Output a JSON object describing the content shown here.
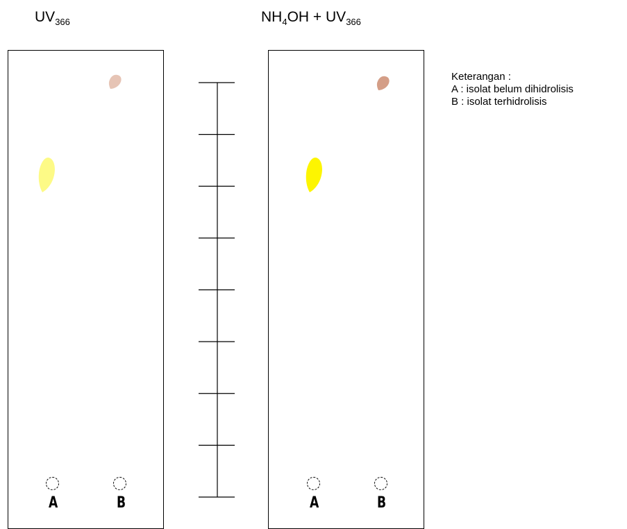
{
  "titles": {
    "left": {
      "main": "UV",
      "sub": "366"
    },
    "right": {
      "main_a": "NH",
      "sub_a": "4",
      "main_b": "OH + UV",
      "sub_b": "366"
    }
  },
  "plates": {
    "left": {
      "lanes": [
        "A",
        "B"
      ],
      "spots": [
        {
          "lane": "A",
          "color": "#fdfa86",
          "rf": 0.79
        },
        {
          "lane": "B",
          "color": "#e6c4b5",
          "rf": 0.98
        }
      ]
    },
    "right": {
      "lanes": [
        "A",
        "B"
      ],
      "spots": [
        {
          "lane": "A",
          "color": "#fdf501",
          "rf": 0.79
        },
        {
          "lane": "B",
          "color": "#d49e87",
          "rf": 0.98
        }
      ]
    }
  },
  "ruler": {
    "ticks": 9
  },
  "legend": {
    "heading": "Keterangan :",
    "items": [
      "A : isolat belum dihidrolisis",
      "B : isolat terhidrolisis"
    ]
  },
  "colors": {
    "line": "#000000",
    "background": "#ffffff"
  }
}
